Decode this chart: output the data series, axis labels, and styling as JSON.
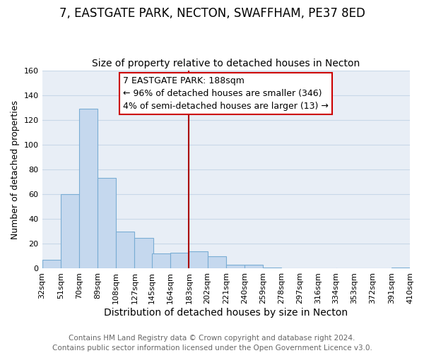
{
  "title": "7, EASTGATE PARK, NECTON, SWAFFHAM, PE37 8ED",
  "subtitle": "Size of property relative to detached houses in Necton",
  "xlabel": "Distribution of detached houses by size in Necton",
  "ylabel": "Number of detached properties",
  "footer_line1": "Contains HM Land Registry data © Crown copyright and database right 2024.",
  "footer_line2": "Contains public sector information licensed under the Open Government Licence v3.0.",
  "annotation_line1": "7 EASTGATE PARK: 188sqm",
  "annotation_line2": "← 96% of detached houses are smaller (346)",
  "annotation_line3": "4% of semi-detached houses are larger (13) →",
  "bar_edges": [
    32,
    51,
    70,
    89,
    108,
    127,
    145,
    164,
    183,
    202,
    221,
    240,
    259,
    278,
    297,
    316,
    334,
    353,
    372,
    391,
    410
  ],
  "bar_heights": [
    7,
    60,
    129,
    73,
    30,
    25,
    12,
    13,
    14,
    10,
    3,
    3,
    1,
    0,
    0,
    0,
    0,
    0,
    0,
    1
  ],
  "bin_width": 19,
  "bar_color": "#c5d8ee",
  "bar_edge_color": "#7aadd4",
  "grid_color": "#c8d8e8",
  "plot_bg_color": "#e8eef6",
  "fig_bg_color": "#ffffff",
  "vline_x": 183,
  "vline_color": "#aa0000",
  "annotation_box_edge_color": "#cc0000",
  "annotation_box_face_color": "#ffffff",
  "ylim": [
    0,
    160
  ],
  "tick_labels": [
    "32sqm",
    "51sqm",
    "70sqm",
    "89sqm",
    "108sqm",
    "127sqm",
    "145sqm",
    "164sqm",
    "183sqm",
    "202sqm",
    "221sqm",
    "240sqm",
    "259sqm",
    "278sqm",
    "297sqm",
    "316sqm",
    "334sqm",
    "353sqm",
    "372sqm",
    "391sqm",
    "410sqm"
  ],
  "title_fontsize": 12,
  "subtitle_fontsize": 10,
  "xlabel_fontsize": 10,
  "ylabel_fontsize": 9,
  "tick_fontsize": 8,
  "annotation_fontsize": 9,
  "footer_fontsize": 7.5
}
